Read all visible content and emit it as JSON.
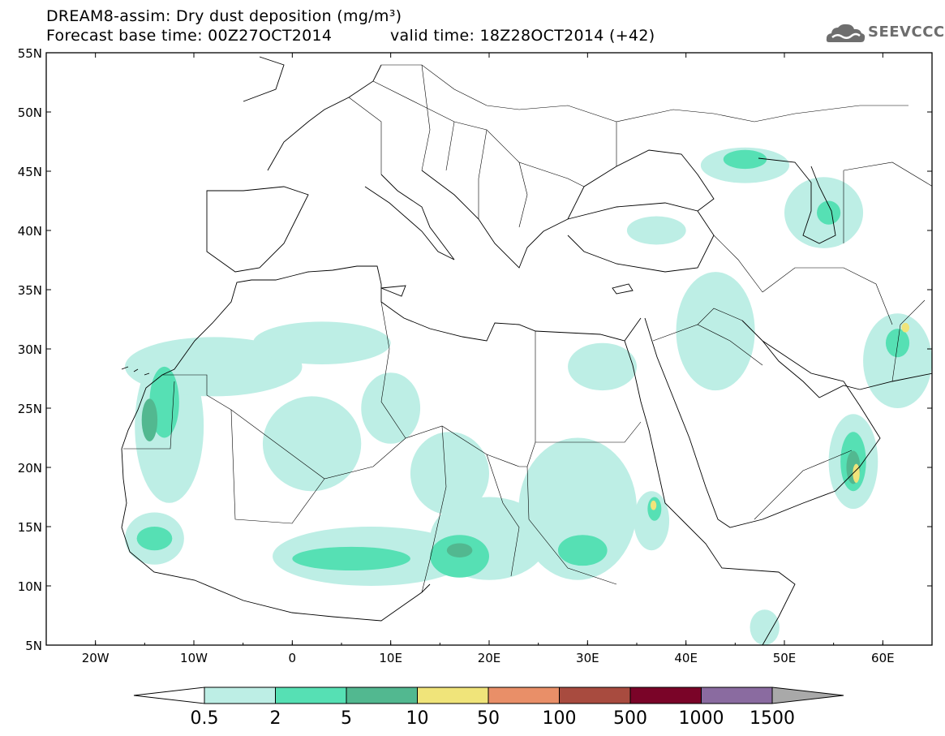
{
  "title": {
    "line1": "DREAM8-assim: Dry dust deposition (mg/m³)",
    "line2": "Forecast base time: 00Z27OCT2014",
    "valid": "valid time: 18Z28OCT2014 (+42)"
  },
  "logo": {
    "text": "SEEVCCC",
    "icon": "cloud-logo-icon"
  },
  "axes": {
    "lat_labels": [
      "55N",
      "50N",
      "45N",
      "40N",
      "35N",
      "30N",
      "25N",
      "20N",
      "15N",
      "10N",
      "5N"
    ],
    "lon_labels": [
      "20W",
      "10W",
      "0",
      "10E",
      "20E",
      "30E",
      "40E",
      "50E",
      "60E"
    ],
    "lon_range": [
      -25,
      65
    ],
    "lat_range": [
      5,
      55
    ]
  },
  "legend": {
    "labels": [
      "0.5",
      "2",
      "5",
      "10",
      "50",
      "100",
      "500",
      "1000",
      "1500"
    ],
    "colors": [
      "#ffffff",
      "#bdeee5",
      "#56e0b4",
      "#52b890",
      "#f0e47a",
      "#e98f68",
      "#a84b3f",
      "#7a0428",
      "#8a6ba0",
      "#a9a9a9"
    ]
  },
  "dust_regions": [
    {
      "level": 1,
      "lon": -12.5,
      "lat": 23.5,
      "rlon": 3.5,
      "rlat": 6.5
    },
    {
      "level": 1,
      "lon": -8,
      "lat": 28.5,
      "rlon": 9,
      "rlat": 2.5
    },
    {
      "level": 1,
      "lon": 3,
      "lat": 30.5,
      "rlon": 7,
      "rlat": 1.8
    },
    {
      "level": 1,
      "lon": 2,
      "lat": 22,
      "rlon": 5,
      "rlat": 4
    },
    {
      "level": 1,
      "lon": 10,
      "lat": 25,
      "rlon": 3,
      "rlat": 3
    },
    {
      "level": 1,
      "lon": 16,
      "lat": 19.5,
      "rlon": 4,
      "rlat": 3.5
    },
    {
      "level": 1,
      "lon": 8,
      "lat": 12.5,
      "rlon": 10,
      "rlat": 2.5
    },
    {
      "level": 1,
      "lon": 20,
      "lat": 14,
      "rlon": 6,
      "rlat": 3.5
    },
    {
      "level": 1,
      "lon": 29,
      "lat": 16.5,
      "rlon": 6,
      "rlat": 6
    },
    {
      "level": 1,
      "lon": 31.5,
      "lat": 28.5,
      "rlon": 3.5,
      "rlat": 2
    },
    {
      "level": 1,
      "lon": -14,
      "lat": 14,
      "rlon": 3,
      "rlat": 2.2
    },
    {
      "level": 1,
      "lon": 43,
      "lat": 31.5,
      "rlon": 4,
      "rlat": 5
    },
    {
      "level": 1,
      "lon": 57,
      "lat": 20.5,
      "rlon": 2.5,
      "rlat": 4
    },
    {
      "level": 1,
      "lon": 61.5,
      "lat": 29,
      "rlon": 3.5,
      "rlat": 4
    },
    {
      "level": 1,
      "lon": 46,
      "lat": 45.5,
      "rlon": 4.5,
      "rlat": 1.5
    },
    {
      "level": 1,
      "lon": 54,
      "lat": 41.5,
      "rlon": 4,
      "rlat": 3
    },
    {
      "level": 1,
      "lon": 37,
      "lat": 40,
      "rlon": 3,
      "rlat": 1.2
    },
    {
      "level": 1,
      "lon": 36.5,
      "lat": 15.5,
      "rlon": 1.8,
      "rlat": 2.5
    },
    {
      "level": 1,
      "lon": 48,
      "lat": 6.5,
      "rlon": 1.5,
      "rlat": 1.5
    },
    {
      "level": 2,
      "lon": -13,
      "lat": 25.5,
      "rlon": 1.5,
      "rlat": 3
    },
    {
      "level": 2,
      "lon": -14,
      "lat": 14,
      "rlon": 1.8,
      "rlat": 1
    },
    {
      "level": 2,
      "lon": 6,
      "lat": 12.3,
      "rlon": 6,
      "rlat": 1
    },
    {
      "level": 2,
      "lon": 17,
      "lat": 12.5,
      "rlon": 3,
      "rlat": 1.8
    },
    {
      "level": 2,
      "lon": 29.5,
      "lat": 13,
      "rlon": 2.5,
      "rlat": 1.3
    },
    {
      "level": 2,
      "lon": 57,
      "lat": 20.5,
      "rlon": 1.3,
      "rlat": 2.5
    },
    {
      "level": 2,
      "lon": 46,
      "lat": 46,
      "rlon": 2.2,
      "rlat": 0.8
    },
    {
      "level": 2,
      "lon": 61.5,
      "lat": 30.5,
      "rlon": 1.2,
      "rlat": 1.2
    },
    {
      "level": 2,
      "lon": 54.5,
      "lat": 41.5,
      "rlon": 1.2,
      "rlat": 1
    },
    {
      "level": 2,
      "lon": 36.8,
      "lat": 16.5,
      "rlon": 0.7,
      "rlat": 1
    },
    {
      "level": 3,
      "lon": -14.5,
      "lat": 24,
      "rlon": 0.8,
      "rlat": 1.8
    },
    {
      "level": 3,
      "lon": 17,
      "lat": 13,
      "rlon": 1.3,
      "rlat": 0.6
    },
    {
      "level": 3,
      "lon": 57,
      "lat": 20,
      "rlon": 0.7,
      "rlat": 1.4
    },
    {
      "level": 4,
      "lon": 57.3,
      "lat": 19.5,
      "rlon": 0.35,
      "rlat": 0.8
    },
    {
      "level": 4,
      "lon": 36.7,
      "lat": 16.8,
      "rlon": 0.3,
      "rlat": 0.4
    },
    {
      "level": 4,
      "lon": 62.3,
      "lat": 31.8,
      "rlon": 0.4,
      "rlat": 0.4
    }
  ]
}
